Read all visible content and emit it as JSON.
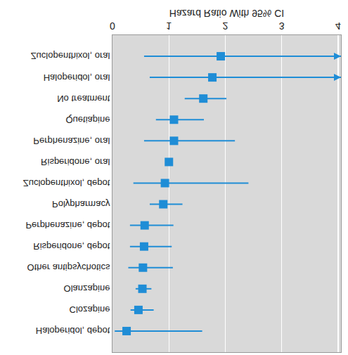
{
  "chart_data": {
    "type": "forest",
    "orientation": "horizontal",
    "xlabel": "Hazard Ratio With 95% CI",
    "categories": [
      "Haloperidol, depot",
      "Clozapine",
      "Olanzapine",
      "Other antipsychotics",
      "Risperidone, depot",
      "Perphenazine, depot",
      "Polypharmacy",
      "Zuclopenthixol, depot",
      "Risperidone, oral",
      "Perphenazine, oral",
      "Quetiapine",
      "No treatment",
      "Haloperidol, oral",
      "Zuclopenthixol, oral"
    ],
    "values": [
      0.25,
      0.46,
      0.53,
      0.54,
      0.56,
      0.57,
      0.9,
      0.93,
      1.0,
      1.09,
      1.09,
      1.61,
      1.77,
      1.92
    ],
    "ci_low": [
      0.04,
      0.32,
      0.41,
      0.28,
      0.31,
      0.31,
      0.66,
      0.37,
      null,
      0.56,
      0.77,
      1.28,
      0.66,
      0.56
    ],
    "ci_high": [
      1.59,
      0.73,
      0.69,
      1.07,
      1.05,
      1.08,
      1.24,
      2.41,
      null,
      2.17,
      1.62,
      2.02,
      5.0,
      6.0
    ],
    "color": "#1f8dd6",
    "marker": "square",
    "xlim": [
      0,
      4.05
    ],
    "xticks": [
      0,
      1,
      2,
      3,
      4
    ],
    "grid": true
  }
}
